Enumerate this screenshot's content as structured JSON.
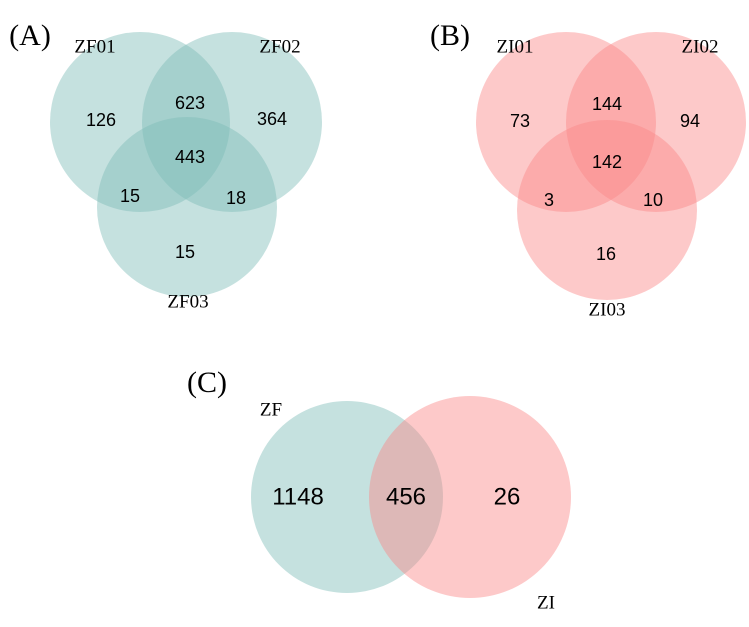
{
  "panels": [
    {
      "label": "(A)",
      "sets": [
        "ZF01",
        "ZF02",
        "ZF03"
      ],
      "regions": [
        126,
        623,
        364,
        443,
        15,
        18,
        15
      ]
    },
    {
      "label": "(B)",
      "sets": [
        "ZI01",
        "ZI02",
        "ZI03"
      ],
      "regions": [
        73,
        144,
        94,
        142,
        3,
        10,
        16
      ]
    },
    {
      "label": "(C)",
      "sets": [
        "ZF",
        "ZI"
      ],
      "regions": [
        1148,
        456,
        26
      ]
    }
  ]
}
